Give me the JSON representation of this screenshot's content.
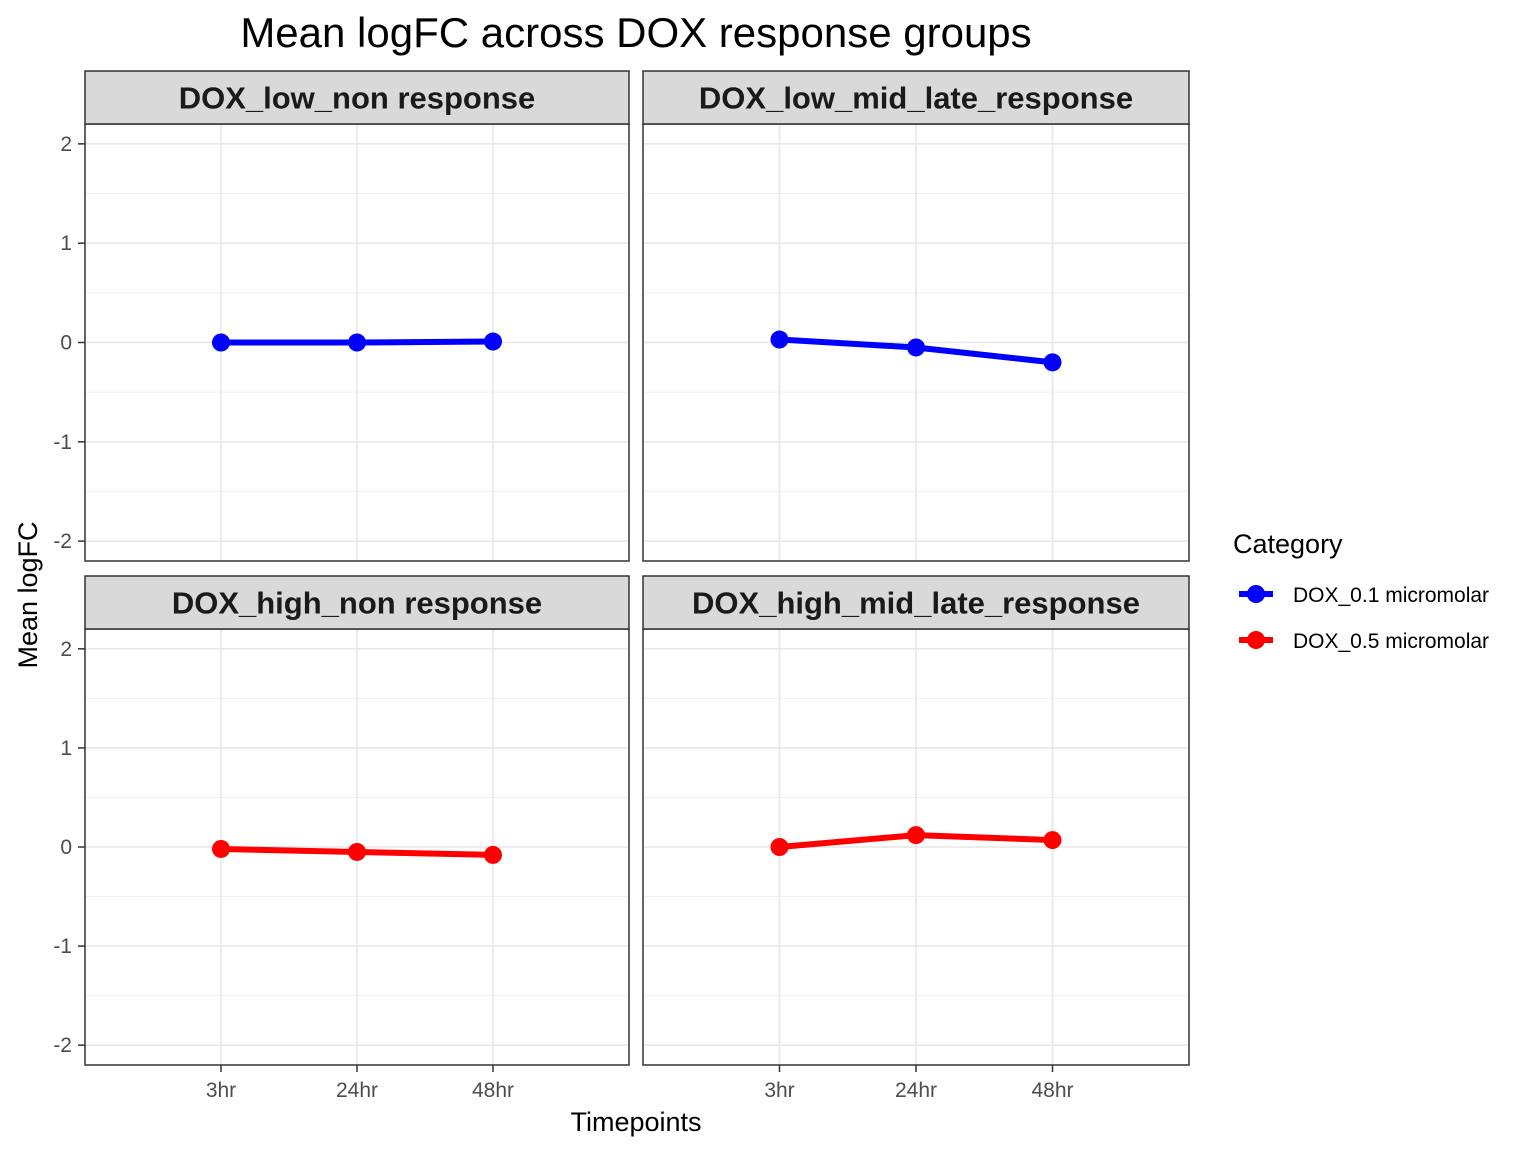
{
  "chart_data": {
    "type": "line",
    "title": "Mean logFC across DOX response groups",
    "xlabel": "Timepoints",
    "ylabel": "Mean logFC",
    "categories": [
      "3hr",
      "24hr",
      "48hr"
    ],
    "ylim": [
      -2.2,
      2.2
    ],
    "yticks": [
      -2,
      -1,
      0,
      1,
      2
    ],
    "grid": true,
    "legend": {
      "title": "Category",
      "position": "right",
      "entries": [
        {
          "name": "DOX_0.1 micromolar",
          "color": "#0000FF"
        },
        {
          "name": "DOX_0.5 micromolar",
          "color": "#FF0000"
        }
      ]
    },
    "panels": [
      {
        "title": "DOX_low_non response",
        "series": [
          {
            "name": "DOX_0.1 micromolar",
            "values": [
              0.0,
              0.0,
              0.01
            ]
          }
        ]
      },
      {
        "title": "DOX_low_mid_late_response",
        "series": [
          {
            "name": "DOX_0.1 micromolar",
            "values": [
              0.03,
              -0.05,
              -0.2
            ]
          }
        ]
      },
      {
        "title": "DOX_high_non response",
        "series": [
          {
            "name": "DOX_0.5 micromolar",
            "values": [
              -0.02,
              -0.05,
              -0.08
            ]
          }
        ]
      },
      {
        "title": "DOX_high_mid_late_response",
        "series": [
          {
            "name": "DOX_0.5 micromolar",
            "values": [
              0.0,
              0.12,
              0.07
            ]
          }
        ]
      }
    ]
  }
}
